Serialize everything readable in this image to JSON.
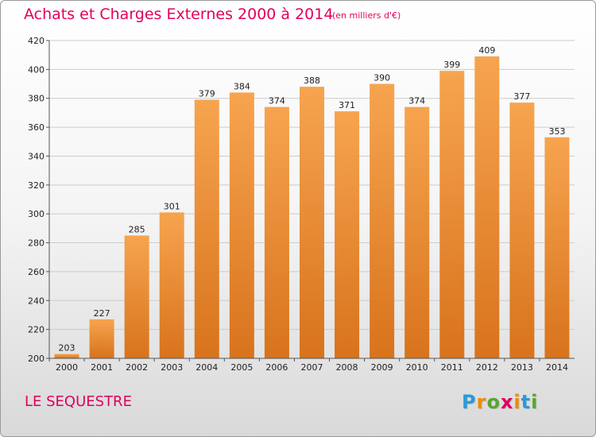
{
  "header": {
    "title": "Achats et Charges Externes 2000 à 2014",
    "subtitle": "(en milliers d'€)"
  },
  "footer": {
    "commune": "LE SEQUESTRE",
    "logo_text": "Proxiti"
  },
  "colors": {
    "title": "#e0005c",
    "bar_top": "#f7a44f",
    "bar_bottom": "#d8731c",
    "grid": "#cccccc"
  },
  "chart_data": {
    "type": "bar",
    "title": "Achats et Charges Externes 2000 à 2014",
    "subtitle": "(en milliers d'€)",
    "categories": [
      "2000",
      "2001",
      "2002",
      "2003",
      "2004",
      "2005",
      "2006",
      "2007",
      "2008",
      "2009",
      "2010",
      "2011",
      "2012",
      "2013",
      "2014"
    ],
    "values": [
      203,
      227,
      285,
      301,
      379,
      384,
      374,
      388,
      371,
      390,
      374,
      399,
      409,
      377,
      353
    ],
    "ylim": [
      200,
      420
    ],
    "yticks": [
      200,
      220,
      240,
      260,
      280,
      300,
      320,
      340,
      360,
      380,
      400,
      420
    ],
    "grid": true,
    "legend": "none"
  }
}
